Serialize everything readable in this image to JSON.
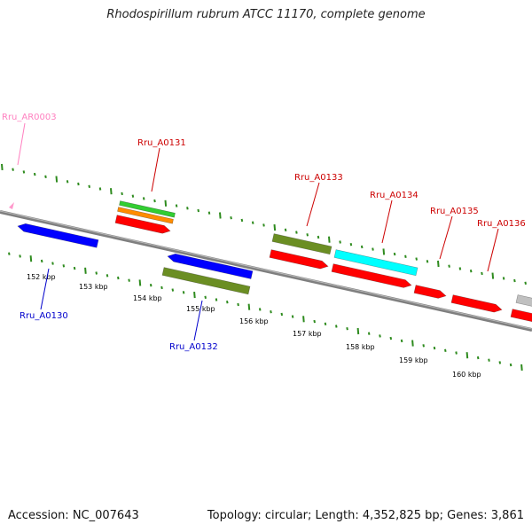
{
  "title": "Rhodospirillum rubrum ATCC 11170, complete genome",
  "footer": {
    "accession": "Accession: NC_007643",
    "topology": "Topology: circular; Length: 4,352,825 bp; Genes: 3,861"
  },
  "colors": {
    "backbone": "#7f7f7f",
    "ticks": "#2e8b1e",
    "forward_cds": "#ff0000",
    "reverse_cds": "#0000ff",
    "olive_cog": "#6b8e23",
    "green_cog": "#32cd32",
    "orange_cog": "#ff8c00",
    "cyan_cog": "#00ffff",
    "grey_cog": "#c0c0c0",
    "rna": "#ff99cc"
  },
  "scale_labels": [
    "152 kbp",
    "153 kbp",
    "154 kbp",
    "155 kbp",
    "156 kbp",
    "157 kbp",
    "158 kbp",
    "159 kbp",
    "160 kbp"
  ],
  "genes": [
    {
      "name": "Rru_AR0003",
      "color": "#ff80c0"
    },
    {
      "name": "Rru_A0131",
      "color": "#cc0000"
    },
    {
      "name": "Rru_A0133",
      "color": "#cc0000"
    },
    {
      "name": "Rru_A0134",
      "color": "#cc0000"
    },
    {
      "name": "Rru_A0135",
      "color": "#cc0000"
    },
    {
      "name": "Rru_A0136",
      "color": "#cc0000"
    },
    {
      "name": "Rru_A0130",
      "color": "#0000cc"
    },
    {
      "name": "Rru_A0132",
      "color": "#0000cc"
    }
  ]
}
